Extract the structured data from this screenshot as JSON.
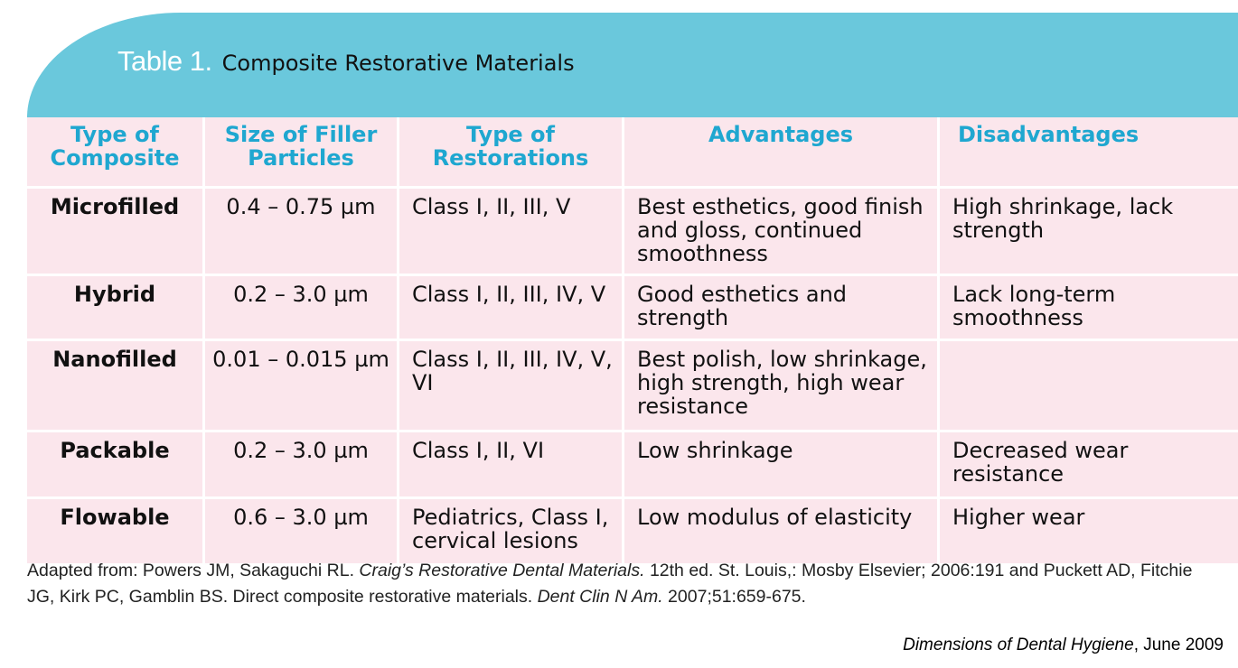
{
  "header": {
    "label": "Table 1.",
    "title": "Composite Restorative Materials"
  },
  "table": {
    "columns": [
      "Type of Composite",
      "Size of Filler Particles",
      "Type of Restorations",
      "Advantages",
      "Disadvantages"
    ],
    "rows": [
      {
        "type": "Microfilled",
        "size": "0.4 – 0.75 µm",
        "restorations": "Class I, II, III, V",
        "advantages": "Best esthetics, good finish and gloss, continued smoothness",
        "disadvantages": "High shrinkage, lack strength"
      },
      {
        "type": "Hybrid",
        "size": "0.2 – 3.0 µm",
        "restorations": "Class I, II, III, IV, V",
        "advantages": "Good esthetics and strength",
        "disadvantages": "Lack long-term smoothness"
      },
      {
        "type": "Nanofilled",
        "size": "0.01 – 0.015 µm",
        "restorations": "Class I, II, III, IV, V, VI",
        "advantages": "Best polish, low shrinkage, high strength, high wear resistance",
        "disadvantages": ""
      },
      {
        "type": "Packable",
        "size": "0.2 – 3.0 µm",
        "restorations": "Class I, II, VI",
        "advantages": "Low shrinkage",
        "disadvantages": "Decreased wear resistance"
      },
      {
        "type": "Flowable",
        "size": "0.6 – 3.0 µm",
        "restorations": "Pediatrics, Class I, cervical lesions",
        "advantages": "Low modulus of elasticity",
        "disadvantages": "Higher wear"
      }
    ]
  },
  "footnote": {
    "prefix": "Adapted from: Powers JM, Sakaguchi RL. ",
    "book_title": "Craig’s Restorative Dental Materials.",
    "middle": " 12th ed. St. Louis,: Mosby Elsevier; 2006:191 and Puckett AD, Fitchie JG, Kirk PC, Gamblin BS. Direct composite restorative materials. ",
    "journal": "Dent Clin N Am.",
    "suffix": " 2007;51:659-675."
  },
  "credit": {
    "publication": "Dimensions of Dental Hygiene",
    "date": ", June 2009"
  },
  "colors": {
    "header_bg": "#6ac8dc",
    "cell_bg": "#fbe6ec",
    "heading_text": "#1fa7d0"
  }
}
